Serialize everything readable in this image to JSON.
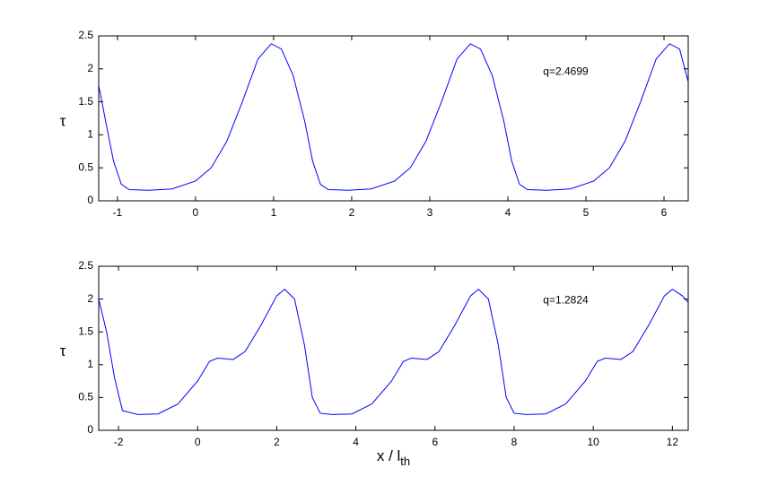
{
  "chart_data": [
    {
      "type": "line",
      "ylabel": "τ",
      "annotation": "q=2.4699",
      "x": [
        -1.24,
        -1.15,
        -1.05,
        -0.95,
        -0.85,
        -0.6,
        -0.3,
        0,
        0.2,
        0.4,
        0.6,
        0.8,
        0.97,
        1.1,
        1.25,
        1.4,
        1.5,
        1.6,
        1.7,
        1.95,
        2.25,
        2.55,
        2.75,
        2.95,
        3.15,
        3.35,
        3.52,
        3.65,
        3.8,
        3.95,
        4.05,
        4.15,
        4.25,
        4.5,
        4.8,
        5.1,
        5.3,
        5.5,
        5.7,
        5.9,
        6.07,
        6.2,
        6.31
      ],
      "series": [
        {
          "color": "#0000ff",
          "values": [
            1.75,
            1.2,
            0.6,
            0.25,
            0.17,
            0.16,
            0.18,
            0.3,
            0.5,
            0.9,
            1.5,
            2.15,
            2.38,
            2.3,
            1.9,
            1.2,
            0.6,
            0.25,
            0.17,
            0.16,
            0.18,
            0.3,
            0.5,
            0.9,
            1.5,
            2.15,
            2.38,
            2.3,
            1.9,
            1.2,
            0.6,
            0.25,
            0.17,
            0.16,
            0.18,
            0.3,
            0.5,
            0.9,
            1.5,
            2.15,
            2.38,
            2.3,
            1.8
          ]
        }
      ],
      "xlim": [
        -1.24,
        6.31
      ],
      "xticks": [
        -1,
        0,
        1,
        2,
        3,
        4,
        5,
        6
      ],
      "ylim": [
        0,
        2.5
      ],
      "yticks": [
        0,
        0.5,
        1,
        1.5,
        2,
        2.5
      ]
    },
    {
      "type": "line",
      "ylabel": "τ",
      "annotation": "q=1.2824",
      "xlabel": {
        "text": "x / l",
        "subscript": "th"
      },
      "x": [
        -2.5,
        -2.3,
        -2.1,
        -1.9,
        -1.5,
        -1,
        -0.5,
        0,
        0.3,
        0.5,
        0.9,
        1.2,
        1.6,
        2.0,
        2.2,
        2.45,
        2.7,
        2.9,
        3.1,
        3.4,
        3.9,
        4.4,
        4.9,
        5.2,
        5.4,
        5.8,
        6.1,
        6.5,
        6.9,
        7.1,
        7.35,
        7.6,
        7.8,
        8.0,
        8.3,
        8.8,
        9.3,
        9.8,
        10.1,
        10.3,
        10.7,
        11.0,
        11.4,
        11.8,
        12.0,
        12.25,
        12.4
      ],
      "series": [
        {
          "color": "#0000ff",
          "values": [
            2.0,
            1.5,
            0.8,
            0.3,
            0.24,
            0.25,
            0.4,
            0.75,
            1.05,
            1.1,
            1.08,
            1.2,
            1.6,
            2.05,
            2.15,
            2.0,
            1.3,
            0.5,
            0.26,
            0.24,
            0.25,
            0.4,
            0.75,
            1.05,
            1.1,
            1.08,
            1.2,
            1.6,
            2.05,
            2.15,
            2.0,
            1.3,
            0.5,
            0.26,
            0.24,
            0.25,
            0.4,
            0.75,
            1.05,
            1.1,
            1.08,
            1.2,
            1.6,
            2.05,
            2.15,
            2.05,
            1.95
          ]
        }
      ],
      "xlim": [
        -2.5,
        12.4
      ],
      "xticks": [
        -2,
        0,
        2,
        4,
        6,
        8,
        10,
        12
      ],
      "ylim": [
        0,
        2.5
      ],
      "yticks": [
        0,
        0.5,
        1,
        1.5,
        2,
        2.5
      ]
    }
  ]
}
